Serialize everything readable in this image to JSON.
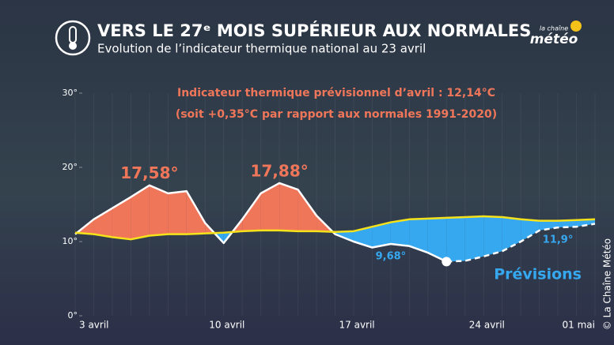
{
  "chart_data": {
    "type": "line",
    "title": "VERS LE 27ᵉ MOIS SUPÉRIEUR AUX NORMALES",
    "subtitle": "Evolution de l’indicateur thermique national au 23 avril",
    "annotations": [
      "Indicateur thermique prévisionnel d’avril : 12,14°C",
      "(soit +0,35°C par rapport aux normales 1991-2020)"
    ],
    "source": "© La Chaîne Météo",
    "logo": {
      "small": "la chaîne",
      "big": "météo"
    },
    "categories": [
      "3 avril",
      null,
      null,
      null,
      null,
      null,
      null,
      "10 avril",
      null,
      null,
      null,
      null,
      null,
      null,
      "17 avril",
      null,
      null,
      null,
      null,
      null,
      null,
      "24 avril",
      null,
      null,
      null,
      null,
      null,
      null,
      "01 mai"
    ],
    "ylim": [
      0,
      30
    ],
    "yticks": [
      {
        "value": 0,
        "label": "0°"
      },
      {
        "value": 10,
        "label": "10°"
      },
      {
        "value": 20,
        "label": "20°"
      },
      {
        "value": 30,
        "label": "30°"
      }
    ],
    "above_color": "#f0765a",
    "below_color": "#35a8f0",
    "series": [
      {
        "color": "#ffffff",
        "values": [
          11.0,
          13.0,
          14.5,
          16.0,
          17.58,
          16.5,
          16.8,
          12.5,
          9.8,
          13.0,
          16.5,
          17.88,
          17.0,
          13.5,
          11.0,
          10.0,
          9.2,
          9.68,
          9.4,
          8.5,
          7.3,
          null,
          null,
          null,
          null,
          null,
          null,
          null,
          null
        ],
        "value_labels": [
          null,
          null,
          null,
          null,
          "17,58°",
          null,
          null,
          null,
          null,
          null,
          null,
          "17,88°",
          null,
          null,
          null,
          null,
          null,
          "9,68°",
          null,
          null,
          null,
          null,
          null,
          null,
          null,
          null,
          null,
          null,
          null
        ]
      },
      {
        "name": "Prévisions",
        "color": "#ffffff",
        "dashed": true,
        "values": [
          null,
          null,
          null,
          null,
          null,
          null,
          null,
          null,
          null,
          null,
          null,
          null,
          null,
          null,
          null,
          null,
          null,
          null,
          null,
          null,
          7.3,
          7.4,
          8.0,
          8.7,
          10.0,
          11.5,
          11.9,
          12.0,
          12.4
        ],
        "value_labels": [
          null,
          null,
          null,
          null,
          null,
          null,
          null,
          null,
          null,
          null,
          null,
          null,
          null,
          null,
          null,
          null,
          null,
          null,
          null,
          null,
          null,
          null,
          null,
          null,
          null,
          null,
          "11,9°",
          null,
          null
        ]
      },
      {
        "color": "#f5e21a",
        "values": [
          11.2,
          11.0,
          10.6,
          10.3,
          10.8,
          11.0,
          11.0,
          11.1,
          11.2,
          11.4,
          11.5,
          11.5,
          11.4,
          11.4,
          11.3,
          11.4,
          12.0,
          12.6,
          13.0,
          13.1,
          13.2,
          13.3,
          13.4,
          13.3,
          13.0,
          12.8,
          12.8,
          12.9,
          13.0
        ]
      }
    ]
  }
}
